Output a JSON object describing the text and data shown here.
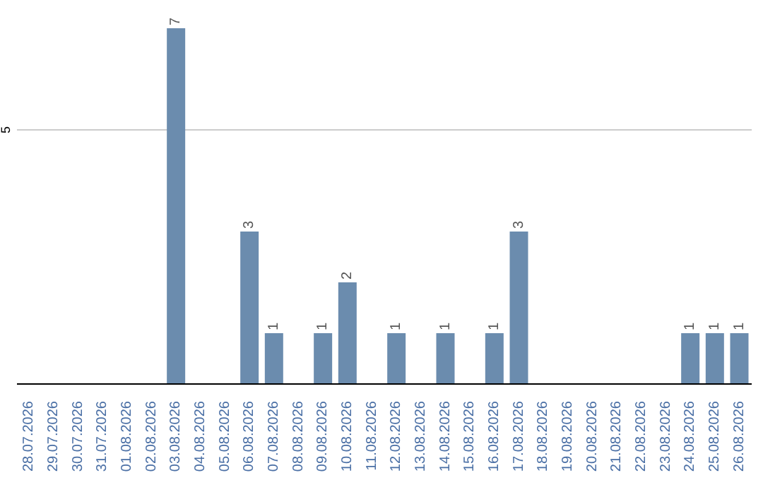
{
  "chart_data": {
    "type": "bar",
    "categories": [
      "28.07.2026",
      "29.07.2026",
      "30.07.2026",
      "31.07.2026",
      "01.08.2026",
      "02.08.2026",
      "03.08.2026",
      "04.08.2026",
      "05.08.2026",
      "06.08.2026",
      "07.08.2026",
      "08.08.2026",
      "09.08.2026",
      "10.08.2026",
      "11.08.2026",
      "12.08.2026",
      "13.08.2026",
      "14.08.2026",
      "15.08.2026",
      "16.08.2026",
      "17.08.2026",
      "18.08.2026",
      "19.08.2026",
      "20.08.2026",
      "21.08.2026",
      "22.08.2026",
      "23.08.2026",
      "24.08.2026",
      "25.08.2026",
      "26.08.2026"
    ],
    "values": [
      0,
      0,
      0,
      0,
      0,
      0,
      7,
      0,
      0,
      3,
      1,
      0,
      1,
      2,
      0,
      1,
      0,
      1,
      0,
      1,
      3,
      0,
      0,
      0,
      0,
      0,
      0,
      1,
      1,
      1
    ],
    "value_labels": [
      null,
      null,
      null,
      null,
      null,
      null,
      "7",
      null,
      null,
      "3",
      "1",
      null,
      "1",
      "2",
      null,
      "1",
      null,
      "1",
      null,
      "1",
      "3",
      null,
      null,
      null,
      null,
      null,
      null,
      "1",
      "1",
      "1"
    ],
    "color": "#6b8cae",
    "ylim": [
      0,
      7
    ],
    "yticks": [
      5
    ],
    "grid": "y"
  }
}
